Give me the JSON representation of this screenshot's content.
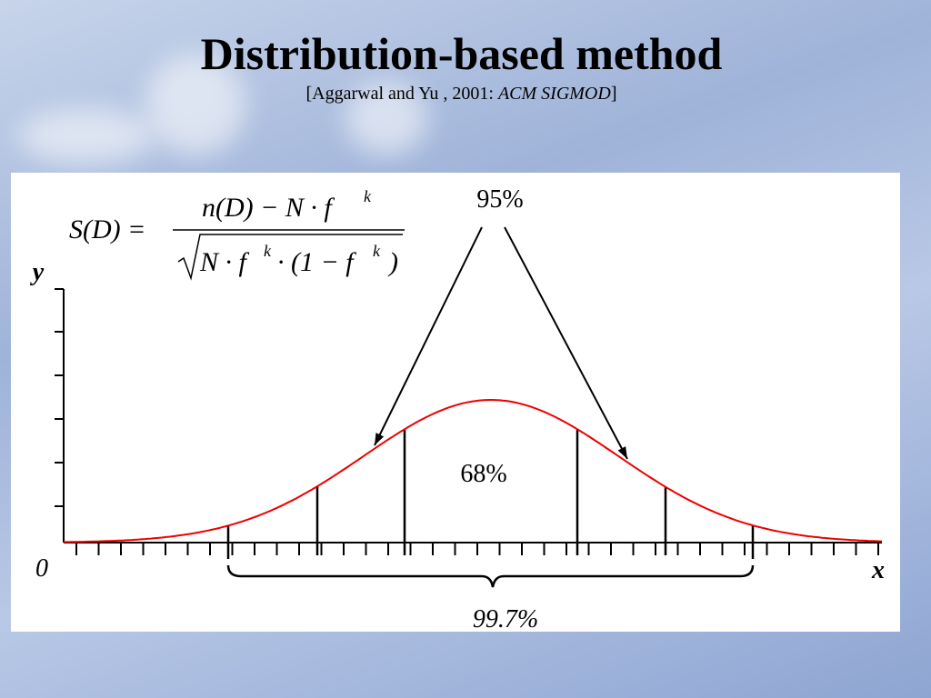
{
  "title": "Distribution-based method",
  "subtitle": {
    "text": "[Aggarwal and Yu  , 2001: ",
    "venue": "ACM SIGMOD",
    "close": "]"
  },
  "formula": {
    "lhs": "S(D) =",
    "numerator": [
      "n(D) − N · f",
      "k"
    ],
    "denominator": [
      "N · f",
      "k",
      "· (1 − f",
      "k",
      ")"
    ]
  },
  "diagram": {
    "top_label": "95%",
    "center_label": "68%",
    "bottom_label": "99.7%",
    "origin_label": "0",
    "x_label": "x",
    "y_label": "y"
  }
}
